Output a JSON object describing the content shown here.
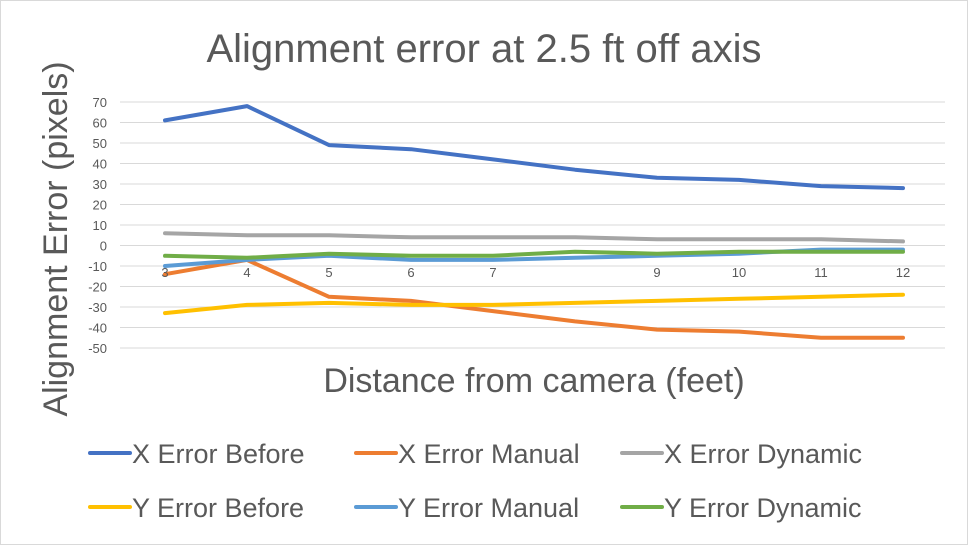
{
  "chart_data": {
    "type": "line",
    "title": "Alignment error at 2.5 ft off axis",
    "xlabel": "Distance from camera (feet)",
    "ylabel": "Alignment Error (pixels)",
    "x": [
      3,
      4,
      5,
      6,
      7,
      8,
      9,
      10,
      11,
      12
    ],
    "x_tick_labels": [
      "3",
      "4",
      "5",
      "6",
      "7",
      "",
      "9",
      "10",
      "11",
      "12"
    ],
    "ylim": [
      -50,
      70
    ],
    "yticks": [
      70,
      60,
      50,
      40,
      30,
      20,
      10,
      0,
      -10,
      -20,
      -30,
      -40,
      -50
    ],
    "grid": true,
    "legend_position": "bottom",
    "series": [
      {
        "name": "X Error Before",
        "color": "#4472c4",
        "values": [
          61,
          68,
          49,
          47,
          42,
          37,
          33,
          32,
          29,
          28
        ]
      },
      {
        "name": "X Error Manual",
        "color": "#ed7d31",
        "values": [
          -14,
          -7,
          -25,
          -27,
          -32,
          -37,
          -41,
          -42,
          -45,
          -45
        ]
      },
      {
        "name": "X Error Dynamic",
        "color": "#a5a5a5",
        "values": [
          6,
          5,
          5,
          4,
          4,
          4,
          3,
          3,
          3,
          2
        ]
      },
      {
        "name": "Y Error Before",
        "color": "#ffc000",
        "values": [
          -33,
          -29,
          -28,
          -29,
          -29,
          -28,
          -27,
          -26,
          -25,
          -24
        ]
      },
      {
        "name": "Y Error Manual",
        "color": "#5b9bd5",
        "values": [
          -10,
          -7,
          -5,
          -7,
          -7,
          -6,
          -5,
          -4,
          -2,
          -2
        ]
      },
      {
        "name": "Y Error Dynamic",
        "color": "#70ad47",
        "values": [
          -5,
          -6,
          -4,
          -5,
          -5,
          -3,
          -4,
          -3,
          -3,
          -3
        ]
      }
    ]
  }
}
